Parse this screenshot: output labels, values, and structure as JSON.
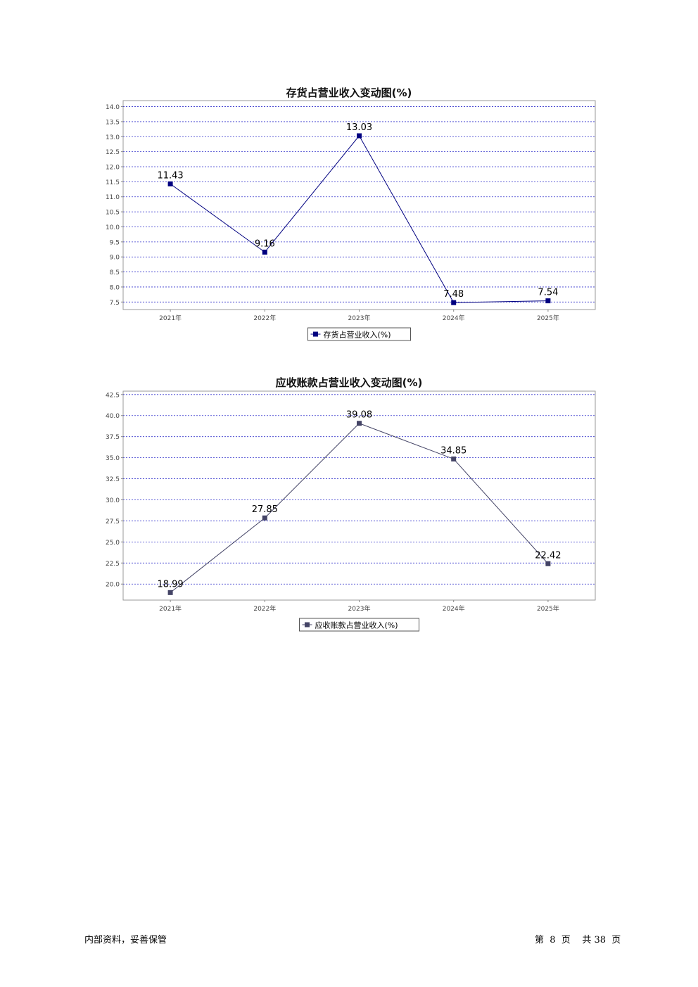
{
  "chart_data": [
    {
      "type": "line",
      "title": "存货占营业收入变动图(%)",
      "categories": [
        "2021年",
        "2022年",
        "2023年",
        "2024年",
        "2025年"
      ],
      "series": [
        {
          "name": "存货占营业收入(%)",
          "values": [
            11.43,
            9.16,
            13.03,
            7.48,
            7.54
          ],
          "color": "#000080"
        }
      ],
      "value_labels": [
        "11.43",
        "9.16",
        "13.03",
        "7.48",
        "7.54"
      ],
      "y_ticks": [
        "7.5",
        "8.0",
        "8.5",
        "9.0",
        "9.5",
        "10.0",
        "10.5",
        "11.0",
        "11.5",
        "12.0",
        "12.5",
        "13.0",
        "13.5",
        "14.0"
      ],
      "ylim": [
        7.25,
        14.2
      ],
      "grid": true,
      "grid_color": "#3333cc",
      "legend_position": "bottom-center"
    },
    {
      "type": "line",
      "title": "应收账款占营业收入变动图(%)",
      "categories": [
        "2021年",
        "2022年",
        "2023年",
        "2024年",
        "2025年"
      ],
      "series": [
        {
          "name": "应收账款占营业收入(%)",
          "values": [
            18.99,
            27.85,
            39.08,
            34.85,
            22.42
          ],
          "color": "#444466"
        }
      ],
      "value_labels": [
        "18.99",
        "27.85",
        "39.08",
        "34.85",
        "22.42"
      ],
      "y_ticks": [
        "20.0",
        "22.5",
        "25.0",
        "27.5",
        "30.0",
        "32.5",
        "35.0",
        "37.5",
        "40.0",
        "42.5"
      ],
      "ylim": [
        18.1,
        42.9
      ],
      "grid": true,
      "grid_color": "#3333cc",
      "legend_position": "bottom-center"
    }
  ],
  "footer": {
    "left": "内部资料，妥善保管",
    "right": "第  8  页    共 38  页"
  }
}
